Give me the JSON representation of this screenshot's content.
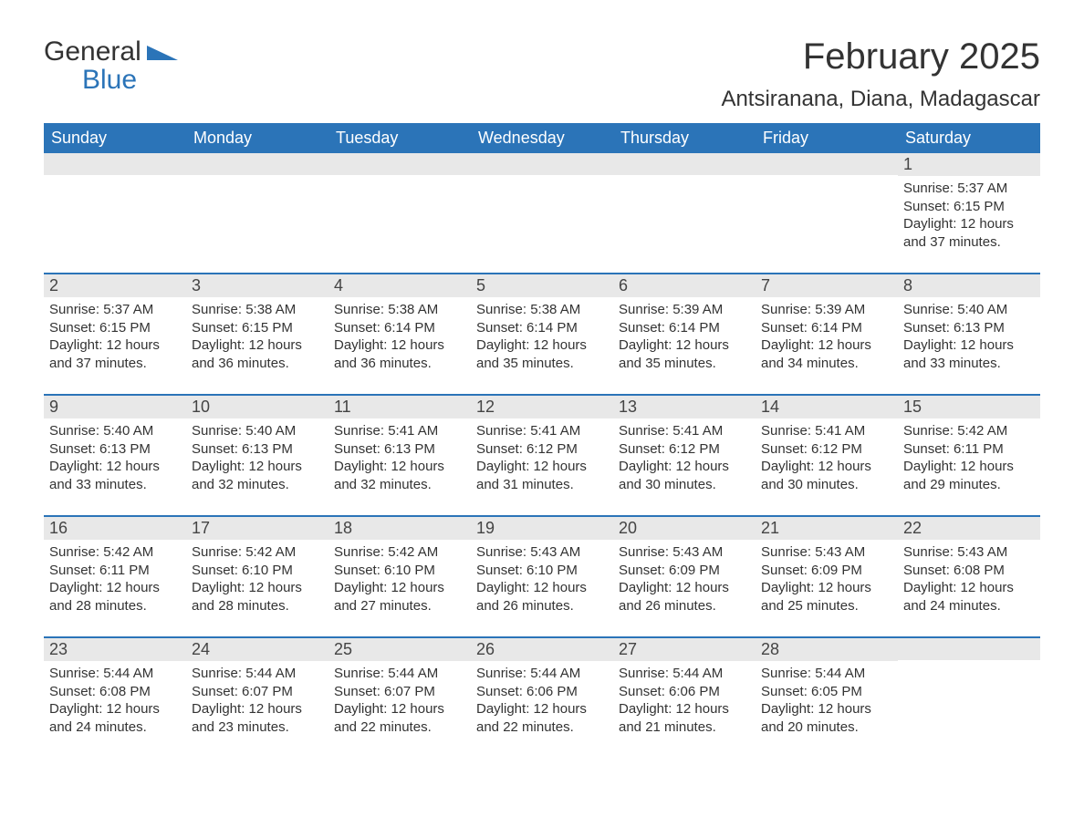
{
  "logo": {
    "general": "General",
    "blue": "Blue",
    "accent_color": "#2b74b8"
  },
  "header": {
    "month_title": "February 2025",
    "location": "Antsiranana, Diana, Madagascar"
  },
  "colors": {
    "header_bg": "#2b74b8",
    "header_text": "#ffffff",
    "daynum_bg": "#e8e8e8",
    "text": "#333333",
    "row_border": "#2b74b8"
  },
  "weekdays": [
    "Sunday",
    "Monday",
    "Tuesday",
    "Wednesday",
    "Thursday",
    "Friday",
    "Saturday"
  ],
  "labels": {
    "sunrise": "Sunrise:",
    "sunset": "Sunset:",
    "daylight": "Daylight:"
  },
  "weeks": [
    [
      {
        "n": "",
        "sr": "",
        "ss": "",
        "dl": ""
      },
      {
        "n": "",
        "sr": "",
        "ss": "",
        "dl": ""
      },
      {
        "n": "",
        "sr": "",
        "ss": "",
        "dl": ""
      },
      {
        "n": "",
        "sr": "",
        "ss": "",
        "dl": ""
      },
      {
        "n": "",
        "sr": "",
        "ss": "",
        "dl": ""
      },
      {
        "n": "",
        "sr": "",
        "ss": "",
        "dl": ""
      },
      {
        "n": "1",
        "sr": "5:37 AM",
        "ss": "6:15 PM",
        "dl": "12 hours and 37 minutes."
      }
    ],
    [
      {
        "n": "2",
        "sr": "5:37 AM",
        "ss": "6:15 PM",
        "dl": "12 hours and 37 minutes."
      },
      {
        "n": "3",
        "sr": "5:38 AM",
        "ss": "6:15 PM",
        "dl": "12 hours and 36 minutes."
      },
      {
        "n": "4",
        "sr": "5:38 AM",
        "ss": "6:14 PM",
        "dl": "12 hours and 36 minutes."
      },
      {
        "n": "5",
        "sr": "5:38 AM",
        "ss": "6:14 PM",
        "dl": "12 hours and 35 minutes."
      },
      {
        "n": "6",
        "sr": "5:39 AM",
        "ss": "6:14 PM",
        "dl": "12 hours and 35 minutes."
      },
      {
        "n": "7",
        "sr": "5:39 AM",
        "ss": "6:14 PM",
        "dl": "12 hours and 34 minutes."
      },
      {
        "n": "8",
        "sr": "5:40 AM",
        "ss": "6:13 PM",
        "dl": "12 hours and 33 minutes."
      }
    ],
    [
      {
        "n": "9",
        "sr": "5:40 AM",
        "ss": "6:13 PM",
        "dl": "12 hours and 33 minutes."
      },
      {
        "n": "10",
        "sr": "5:40 AM",
        "ss": "6:13 PM",
        "dl": "12 hours and 32 minutes."
      },
      {
        "n": "11",
        "sr": "5:41 AM",
        "ss": "6:13 PM",
        "dl": "12 hours and 32 minutes."
      },
      {
        "n": "12",
        "sr": "5:41 AM",
        "ss": "6:12 PM",
        "dl": "12 hours and 31 minutes."
      },
      {
        "n": "13",
        "sr": "5:41 AM",
        "ss": "6:12 PM",
        "dl": "12 hours and 30 minutes."
      },
      {
        "n": "14",
        "sr": "5:41 AM",
        "ss": "6:12 PM",
        "dl": "12 hours and 30 minutes."
      },
      {
        "n": "15",
        "sr": "5:42 AM",
        "ss": "6:11 PM",
        "dl": "12 hours and 29 minutes."
      }
    ],
    [
      {
        "n": "16",
        "sr": "5:42 AM",
        "ss": "6:11 PM",
        "dl": "12 hours and 28 minutes."
      },
      {
        "n": "17",
        "sr": "5:42 AM",
        "ss": "6:10 PM",
        "dl": "12 hours and 28 minutes."
      },
      {
        "n": "18",
        "sr": "5:42 AM",
        "ss": "6:10 PM",
        "dl": "12 hours and 27 minutes."
      },
      {
        "n": "19",
        "sr": "5:43 AM",
        "ss": "6:10 PM",
        "dl": "12 hours and 26 minutes."
      },
      {
        "n": "20",
        "sr": "5:43 AM",
        "ss": "6:09 PM",
        "dl": "12 hours and 26 minutes."
      },
      {
        "n": "21",
        "sr": "5:43 AM",
        "ss": "6:09 PM",
        "dl": "12 hours and 25 minutes."
      },
      {
        "n": "22",
        "sr": "5:43 AM",
        "ss": "6:08 PM",
        "dl": "12 hours and 24 minutes."
      }
    ],
    [
      {
        "n": "23",
        "sr": "5:44 AM",
        "ss": "6:08 PM",
        "dl": "12 hours and 24 minutes."
      },
      {
        "n": "24",
        "sr": "5:44 AM",
        "ss": "6:07 PM",
        "dl": "12 hours and 23 minutes."
      },
      {
        "n": "25",
        "sr": "5:44 AM",
        "ss": "6:07 PM",
        "dl": "12 hours and 22 minutes."
      },
      {
        "n": "26",
        "sr": "5:44 AM",
        "ss": "6:06 PM",
        "dl": "12 hours and 22 minutes."
      },
      {
        "n": "27",
        "sr": "5:44 AM",
        "ss": "6:06 PM",
        "dl": "12 hours and 21 minutes."
      },
      {
        "n": "28",
        "sr": "5:44 AM",
        "ss": "6:05 PM",
        "dl": "12 hours and 20 minutes."
      },
      {
        "n": "",
        "sr": "",
        "ss": "",
        "dl": ""
      }
    ]
  ]
}
